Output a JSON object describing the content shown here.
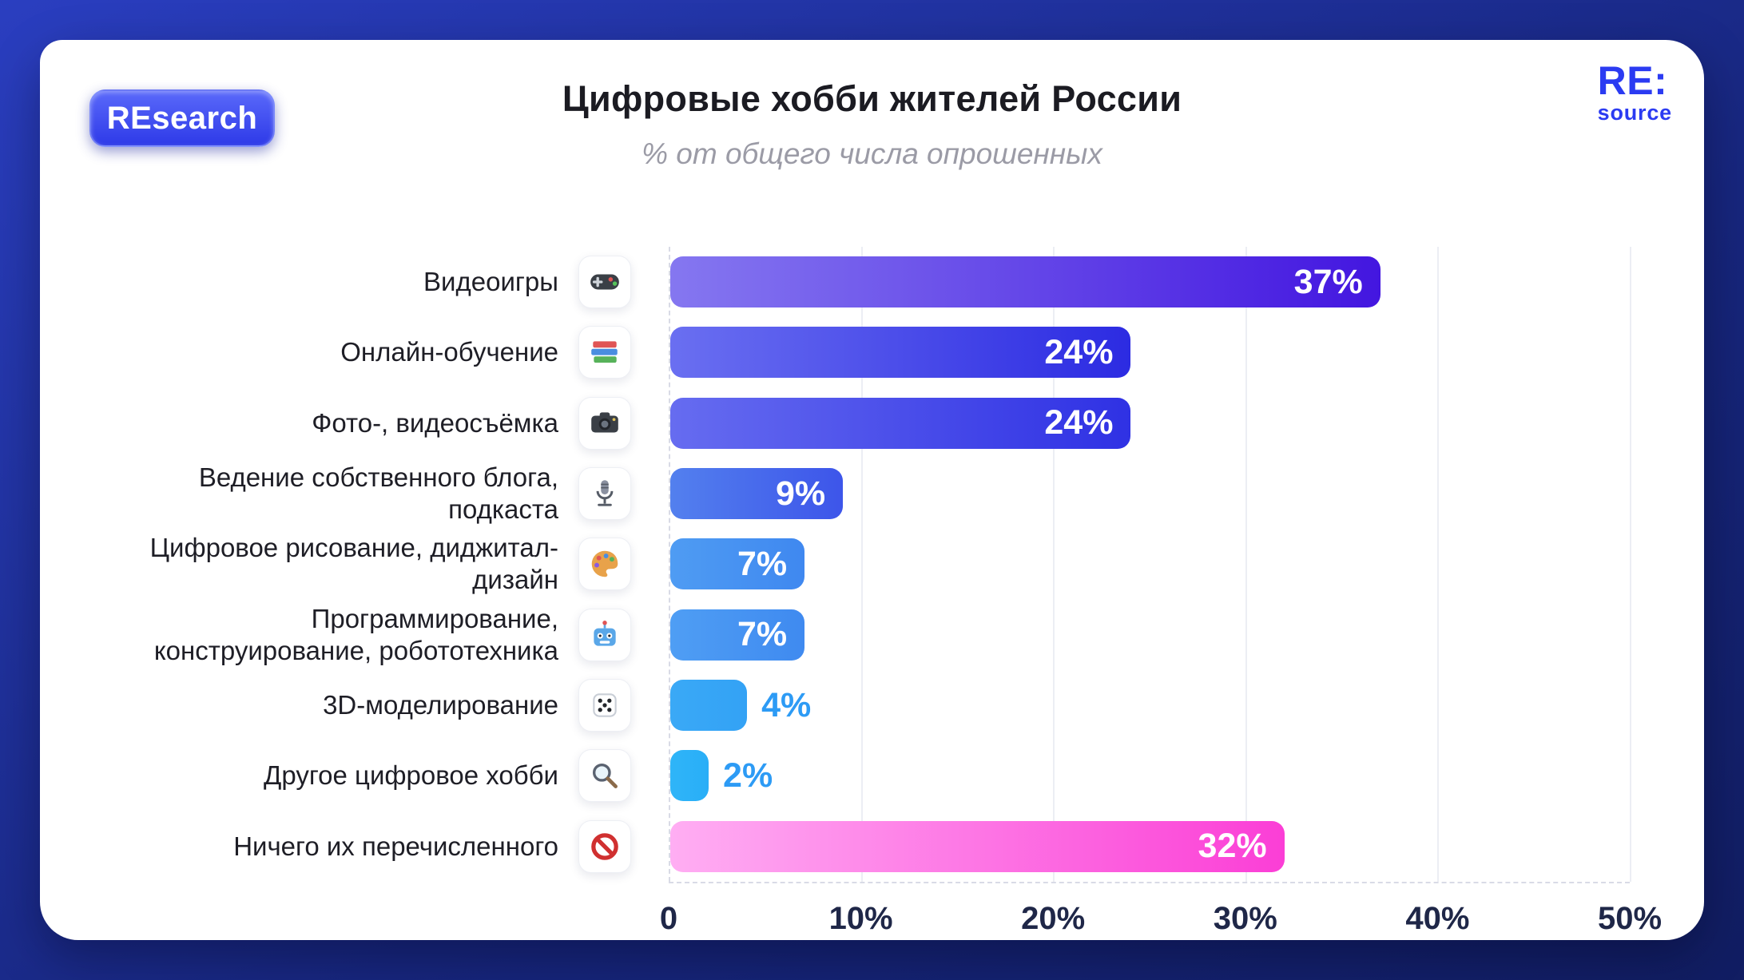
{
  "badge": {
    "label": "REsearch"
  },
  "logo": {
    "line1": "RE:",
    "line2": "source"
  },
  "colors": {
    "background": "#1b2da0",
    "brand_accent": "#2b3bf2",
    "outside_value_label": "#2d9bf5"
  },
  "chart_data": {
    "type": "bar",
    "orientation": "horizontal",
    "title": "Цифровые хобби жителей России",
    "subtitle": "% от общего числа опрошенных",
    "xlim": [
      0,
      50
    ],
    "x_ticks": [
      "0",
      "10%",
      "20%",
      "30%",
      "40%",
      "50%"
    ],
    "grid": "vertical",
    "rows": [
      {
        "category": "Видеоигры",
        "icon": "gamepad-icon",
        "value": 37,
        "label": "37%",
        "label_position": "inside",
        "color_from": "#8577f0",
        "color_to": "#4316e0"
      },
      {
        "category": "Онлайн-обучение",
        "icon": "books-icon",
        "value": 24,
        "label": "24%",
        "label_position": "inside",
        "color_from": "#6a6ff1",
        "color_to": "#2c2be2"
      },
      {
        "category": "Фото-, видеосъёмка",
        "icon": "camera-icon",
        "value": 24,
        "label": "24%",
        "label_position": "inside",
        "color_from": "#666cf0",
        "color_to": "#2f31e4"
      },
      {
        "category": "Ведение собственного блога,\nподкаста",
        "icon": "microphone-icon",
        "value": 9,
        "label": "9%",
        "label_position": "inside",
        "color_from": "#5380ee",
        "color_to": "#3d55ea"
      },
      {
        "category": "Цифровое рисование, диджитал-\nдизайн",
        "icon": "palette-icon",
        "value": 7,
        "label": "7%",
        "label_position": "inside",
        "color_from": "#4f9cf3",
        "color_to": "#3f88f0"
      },
      {
        "category": "Программирование,\nконструирование, робототехника",
        "icon": "robot-icon",
        "value": 7,
        "label": "7%",
        "label_position": "inside",
        "color_from": "#4f9ef4",
        "color_to": "#3f8af0"
      },
      {
        "category": "3D-моделирование",
        "icon": "dice-icon",
        "value": 4,
        "label": "4%",
        "label_position": "outside",
        "label_color": "#2d9bf5",
        "color_from": "#3aa9f6",
        "color_to": "#33a2f5"
      },
      {
        "category": "Другое цифровое хобби",
        "icon": "magnifier-icon",
        "value": 2,
        "label": "2%",
        "label_position": "outside",
        "label_color": "#2d9bf5",
        "color_from": "#2fb5f8",
        "color_to": "#29aef7"
      },
      {
        "category": "Ничего их перечисленного",
        "icon": "prohibited-icon",
        "value": 32,
        "label": "32%",
        "label_position": "inside",
        "color_from": "#ffaef3",
        "color_to": "#fb3ed6"
      }
    ]
  }
}
